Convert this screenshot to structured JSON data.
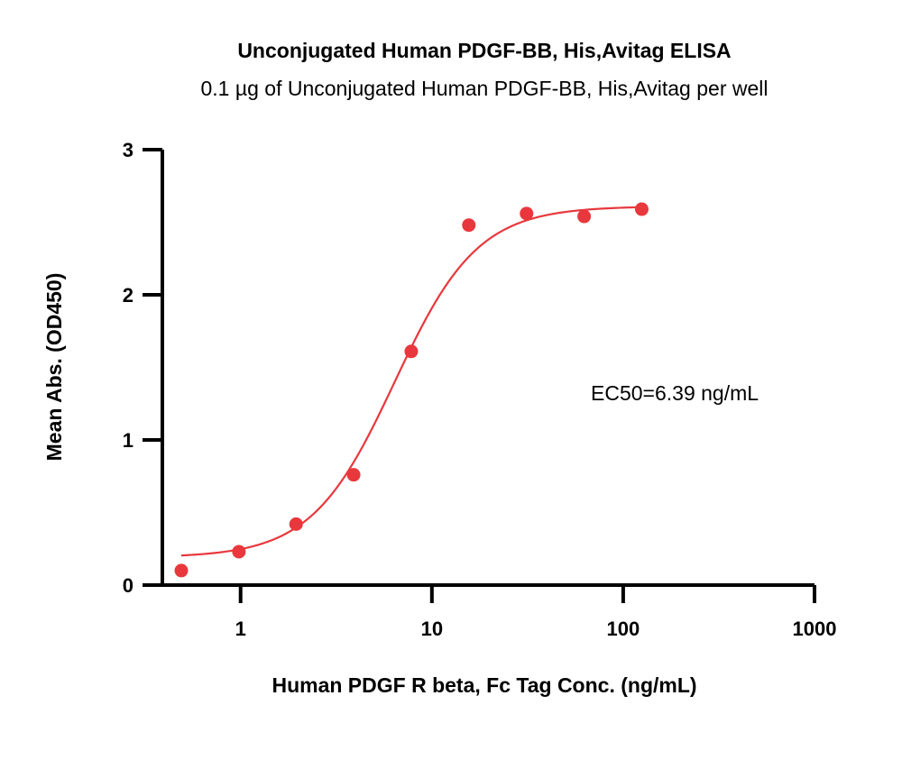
{
  "chart_data": {
    "type": "scatter",
    "title": "Unconjugated Human PDGF-BB, His,Avitag ELISA",
    "subtitle": "0.1 µg of Unconjugated Human PDGF-BB, His,Avitag per well",
    "xlabel": "Human PDGF R beta, Fc Tag Conc. (ng/mL)",
    "ylabel": "Mean Abs. (OD450)",
    "x_scale": "log",
    "xlim": [
      0.39,
      1000
    ],
    "ylim": [
      0,
      3
    ],
    "x_ticks": [
      {
        "value": 1,
        "label": "1"
      },
      {
        "value": 10,
        "label": "10"
      },
      {
        "value": 100,
        "label": "100"
      },
      {
        "value": 1000,
        "label": "1000"
      }
    ],
    "y_ticks": [
      {
        "value": 0,
        "label": "0"
      },
      {
        "value": 1,
        "label": "1"
      },
      {
        "value": 2,
        "label": "2"
      },
      {
        "value": 3,
        "label": "3"
      }
    ],
    "series": [
      {
        "x": [
          0.49,
          0.98,
          1.95,
          3.9,
          7.8,
          15.6,
          31.25,
          62.5,
          125
        ],
        "y": [
          0.1,
          0.23,
          0.42,
          0.76,
          1.61,
          2.48,
          2.56,
          2.54,
          2.59
        ],
        "color": "#e8383d"
      }
    ],
    "fit": {
      "model": "4PL",
      "bottom": 0.19,
      "top": 2.61,
      "ec50": 6.39,
      "hill": 2.0,
      "x_range": [
        0.49,
        125
      ],
      "color": "#e8383d"
    },
    "annotation": "EC50=6.39 ng/mL",
    "grid": false,
    "legend": "none"
  }
}
